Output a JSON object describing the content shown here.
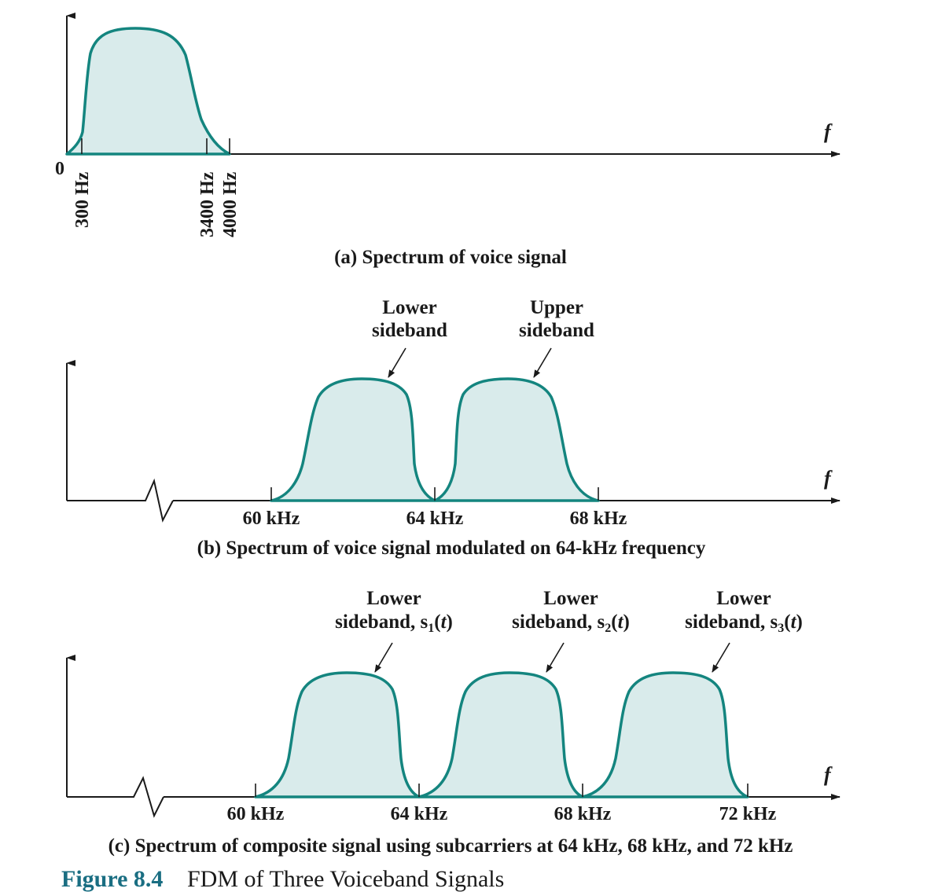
{
  "panel_a": {
    "zero": "0",
    "tick_300": "300 Hz",
    "tick_3400": "3400 Hz",
    "tick_4000": "4000 Hz",
    "f": "f",
    "caption": "(a) Spectrum of voice signal"
  },
  "panel_b": {
    "lower_l1": "Lower",
    "lower_l2": "sideband",
    "upper_l1": "Upper",
    "upper_l2": "sideband",
    "t60": "60 kHz",
    "t64": "64 kHz",
    "t68": "68 kHz",
    "f": "f",
    "caption": "(b) Spectrum of voice signal modulated on 64-kHz frequency"
  },
  "panel_c": {
    "s1_l1": "Lower",
    "s1_l2": "sideband, s",
    "s1_sub": "1",
    "s2_l1": "Lower",
    "s2_l2": "sideband, s",
    "s2_sub": "2",
    "s3_l1": "Lower",
    "s3_l2": "sideband, s",
    "s3_sub": "3",
    "t_arg": "t",
    "t60": "60 kHz",
    "t64": "64 kHz",
    "t68": "68 kHz",
    "t72": "72 kHz",
    "f": "f",
    "caption": "(c) Spectrum of composite signal using subcarriers at 64 kHz, 68 kHz, and 72 kHz"
  },
  "figure": {
    "number": "Figure 8.4",
    "title": "FDM of Three Voiceband Signals"
  },
  "colors": {
    "curve": "#14857f",
    "fill": "#d9ebeb",
    "axis": "#1a1a1a",
    "figure_number": "#1a6e82"
  }
}
